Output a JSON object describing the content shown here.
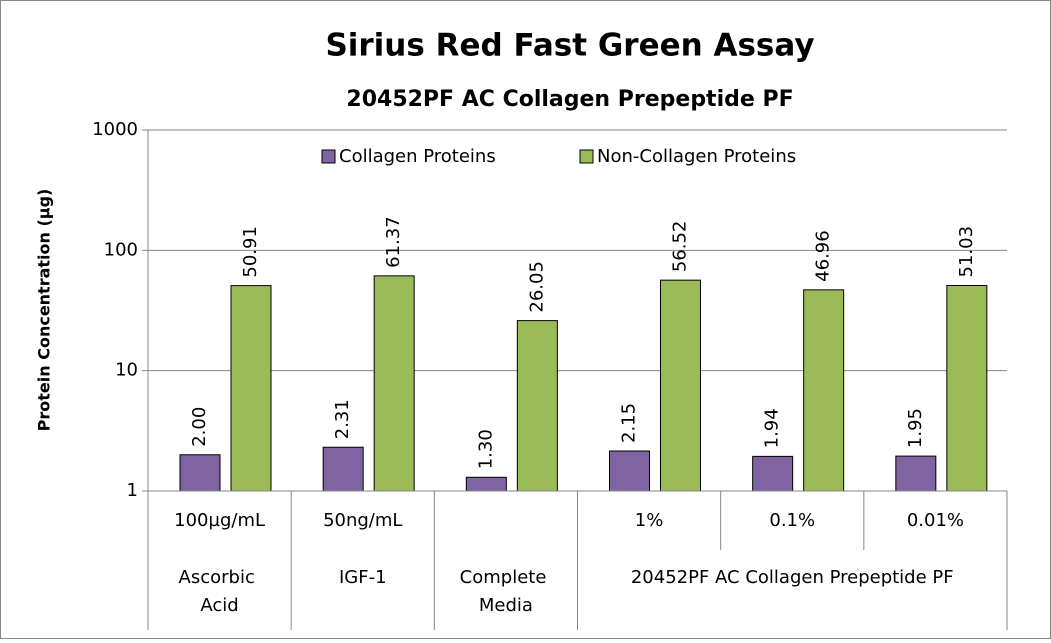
{
  "chart_data": {
    "type": "bar",
    "title": "Sirius Red Fast Green Assay",
    "subtitle": "20452PF AC Collagen Prepeptide PF",
    "y_label": "Protein Concentration (µg)",
    "categories": [
      "100µg/mL",
      "50ng/mL",
      null,
      "1%",
      "0.1%",
      "0.01%"
    ],
    "groups": [
      {
        "name": "Ascorbic Acid",
        "size": 1
      },
      {
        "name": "IGF-1",
        "size": 1
      },
      {
        "name": "Complete Media",
        "size": 1
      },
      {
        "name": "20452PF AC Collagen Prepeptide PF",
        "size": 3
      }
    ],
    "series": [
      {
        "name": "Collagen Proteins",
        "color": "#8064a2",
        "values": [
          2.0,
          2.31,
          1.3,
          2.15,
          1.94,
          1.95
        ],
        "value_labels": [
          "2.00",
          "2.31",
          "1.30",
          "2.15",
          "1.94",
          "1.95"
        ]
      },
      {
        "name": "Non-Collagen Proteins",
        "color": "#9bbb59",
        "values": [
          50.91,
          61.37,
          26.05,
          56.52,
          46.96,
          51.03
        ],
        "value_labels": [
          "50.91",
          "61.37",
          "26.05",
          "56.52",
          "46.96",
          "51.03"
        ]
      }
    ],
    "ylim": [
      1,
      1000
    ],
    "yticks": [
      1,
      10,
      100,
      1000
    ],
    "log_y": true,
    "grid": true,
    "legend": "top"
  }
}
